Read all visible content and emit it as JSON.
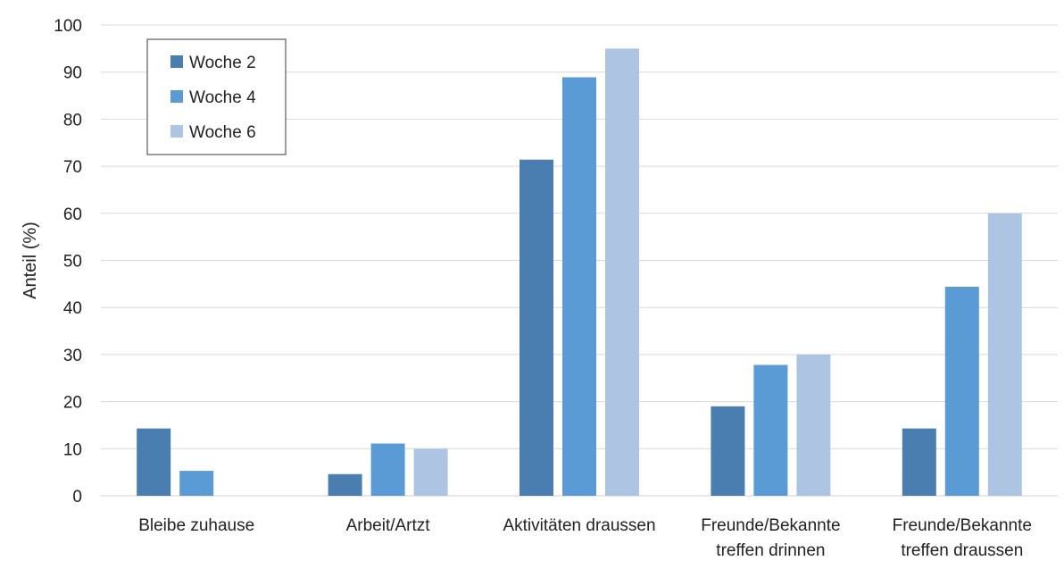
{
  "chart_data": {
    "type": "bar",
    "ylabel": "Anteil (%)",
    "xlabel": "",
    "ylim": [
      0,
      100
    ],
    "yticks": [
      0,
      10,
      20,
      30,
      40,
      50,
      60,
      70,
      80,
      90,
      100
    ],
    "grid": true,
    "legend_position": "top-left",
    "categories": [
      [
        "Bleibe zuhause"
      ],
      [
        "Arbeit/Artzt"
      ],
      [
        "Aktivitäten draussen"
      ],
      [
        "Freunde/Bekannte",
        "treffen drinnen"
      ],
      [
        "Freunde/Bekannte",
        "treffen draussen"
      ]
    ],
    "series": [
      {
        "name": "Woche 2",
        "color": "#4a7db0",
        "values": [
          14.3,
          4.6,
          71.4,
          19.0,
          14.3
        ]
      },
      {
        "name": "Woche 4",
        "color": "#5b9bd5",
        "values": [
          5.3,
          11.1,
          88.9,
          27.8,
          44.4
        ]
      },
      {
        "name": "Woche 6",
        "color": "#adc5e3",
        "values": [
          0,
          10.0,
          95.0,
          30.0,
          60.0
        ]
      }
    ]
  }
}
